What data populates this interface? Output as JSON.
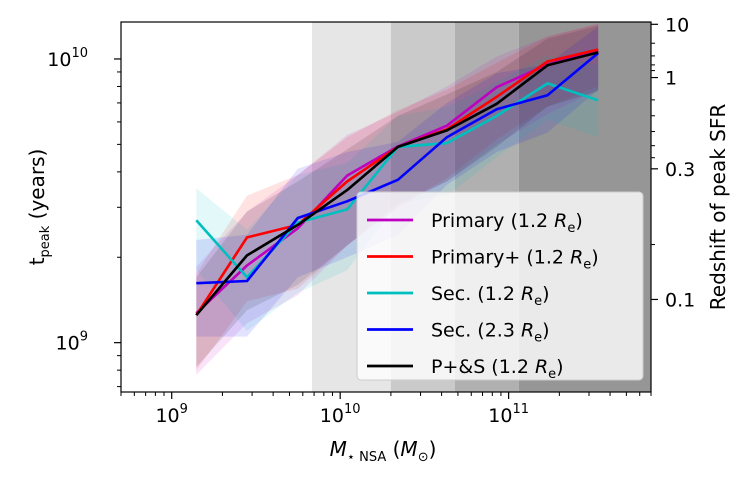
{
  "chart_data": {
    "type": "line",
    "x_scale": "log",
    "y_scale": "log",
    "xlim": [
      500000000,
      700000000000
    ],
    "ylim": [
      670000000,
      13500000000
    ],
    "xlabel": "M⋆ NSA (M⊙)",
    "ylabel": "t peak (years)",
    "right_ylabel": "Redshift of peak SFR",
    "x_ticks": [
      {
        "value": 1000000000,
        "base": "10",
        "exp": "9"
      },
      {
        "value": 10000000000,
        "base": "10",
        "exp": "10"
      },
      {
        "value": 100000000000,
        "base": "10",
        "exp": "11"
      }
    ],
    "y_ticks": [
      {
        "value": 1000000000,
        "base": "10",
        "exp": "9"
      },
      {
        "value": 10000000000,
        "base": "10",
        "exp": "10"
      }
    ],
    "right_ticks": [
      {
        "label": "10",
        "y_equiv": 13250000000
      },
      {
        "label": "1",
        "y_equiv": 8600000000
      },
      {
        "label": "0.3",
        "y_equiv": 4100000000
      },
      {
        "label": "0.1",
        "y_equiv": 1420000000
      }
    ],
    "mass_bins": [
      {
        "range": [
          6800000000,
          20000000000
        ],
        "shade": "#e6e6e6"
      },
      {
        "range": [
          20000000000,
          48000000000
        ],
        "shade": "#cacaca"
      },
      {
        "range": [
          48000000000,
          115000000000
        ],
        "shade": "#b0b0b0"
      },
      {
        "range": [
          115000000000,
          700000000000
        ],
        "shade": "#969696"
      }
    ],
    "x": [
      1400000000,
      2800000000,
      5600000000,
      11000000000,
      22000000000,
      43000000000,
      85000000000,
      170000000000,
      340000000000
    ],
    "series": [
      {
        "name": "Primary",
        "label_prefix": "Primary (1.2",
        "color": "#bf00bf",
        "values": [
          1270000000,
          1870000000,
          2530000000,
          3880000000,
          4920000000,
          5820000000,
          7950000000,
          9550000000,
          10700000000
        ],
        "lower": [
          770000000,
          1170000000,
          1470000000,
          2200000000,
          3000000000,
          3700000000,
          5000000000,
          6400000000,
          7800000000
        ],
        "upper": [
          1850000000,
          2900000000,
          3900000000,
          5400000000,
          6500000000,
          8000000000,
          10200000000,
          12000000000,
          13300000000
        ]
      },
      {
        "name": "Primary+",
        "label_prefix": "Primary+ (1.2",
        "color": "#ff0000",
        "values": [
          1250000000,
          2350000000,
          2600000000,
          3700000000,
          4900000000,
          5650000000,
          7350000000,
          9800000000,
          10800000000
        ],
        "lower": [
          800000000,
          1400000000,
          1550000000,
          2200000000,
          3000000000,
          3800000000,
          5200000000,
          6800000000,
          8000000000
        ],
        "upper": [
          1750000000,
          3300000000,
          3900000000,
          5300000000,
          6600000000,
          7800000000,
          9700000000,
          12000000000,
          13300000000
        ]
      },
      {
        "name": "Sec. 1.2",
        "label_prefix": "Sec. (1.2",
        "color": "#00bfbf",
        "values": [
          2700000000,
          1700000000,
          2650000000,
          2950000000,
          4900000000,
          5050000000,
          6300000000,
          8200000000,
          7150000000
        ],
        "lower": [
          1800000000,
          1100000000,
          1500000000,
          1800000000,
          3100000000,
          3300000000,
          4500000000,
          6100000000,
          5300000000
        ],
        "upper": [
          3500000000,
          2500000000,
          3900000000,
          4300000000,
          6300000000,
          6800000000,
          8300000000,
          10300000000,
          9500000000
        ]
      },
      {
        "name": "Sec. 2.3",
        "label_prefix": "Sec. (2.3",
        "color": "#0000ff",
        "values": [
          1620000000,
          1650000000,
          2750000000,
          3150000000,
          3750000000,
          5300000000,
          6650000000,
          7450000000,
          10500000000
        ],
        "lower": [
          1050000000,
          1050000000,
          1700000000,
          2000000000,
          2400000000,
          3600000000,
          4700000000,
          5500000000,
          7800000000
        ],
        "upper": [
          2300000000,
          2400000000,
          4100000000,
          4700000000,
          5100000000,
          7000000000,
          8900000000,
          9600000000,
          13000000000
        ]
      },
      {
        "name": "P+&S",
        "label_prefix": "P+&S (1.2",
        "color": "#000000",
        "values": [
          1250000000,
          2030000000,
          2600000000,
          3450000000,
          4900000000,
          5600000000,
          6950000000,
          9500000000,
          10550000000
        ],
        "lower": [
          820000000,
          1300000000,
          1600000000,
          2200000000,
          3100000000,
          3700000000,
          4900000000,
          6800000000,
          7700000000
        ],
        "upper": [
          1700000000,
          2900000000,
          3700000000,
          4800000000,
          6300000000,
          7500000000,
          9000000000,
          11800000000,
          13100000000
        ]
      }
    ],
    "label_radius_symbol": "R",
    "label_radius_sub": "e",
    "label_suffix": ")",
    "legend_position": "lower-right"
  }
}
